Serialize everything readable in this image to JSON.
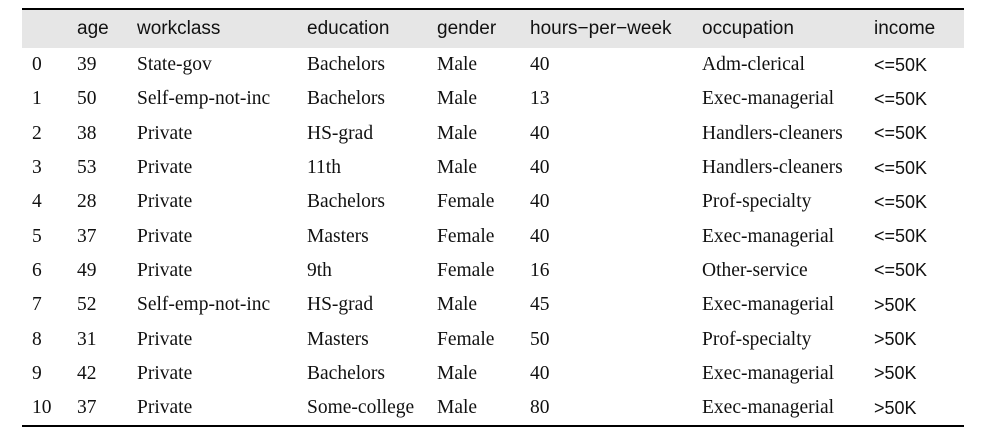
{
  "table": {
    "columns": [
      "",
      "age",
      "workclass",
      "education",
      "gender",
      "hours−per−week",
      "occupation",
      "income"
    ],
    "rows": [
      [
        "0",
        "39",
        "State-gov",
        "Bachelors",
        "Male",
        "40",
        "Adm-clerical",
        "<=50K"
      ],
      [
        "1",
        "50",
        "Self-emp-not-inc",
        "Bachelors",
        "Male",
        "13",
        "Exec-managerial",
        "<=50K"
      ],
      [
        "2",
        "38",
        "Private",
        "HS-grad",
        "Male",
        "40",
        "Handlers-cleaners",
        "<=50K"
      ],
      [
        "3",
        "53",
        "Private",
        "11th",
        "Male",
        "40",
        "Handlers-cleaners",
        "<=50K"
      ],
      [
        "4",
        "28",
        "Private",
        "Bachelors",
        "Female",
        "40",
        "Prof-specialty",
        "<=50K"
      ],
      [
        "5",
        "37",
        "Private",
        "Masters",
        "Female",
        "40",
        "Exec-managerial",
        "<=50K"
      ],
      [
        "6",
        "49",
        "Private",
        "9th",
        "Female",
        "16",
        "Other-service",
        "<=50K"
      ],
      [
        "7",
        "52",
        "Self-emp-not-inc",
        "HS-grad",
        "Male",
        "45",
        "Exec-managerial",
        ">50K"
      ],
      [
        "8",
        "31",
        "Private",
        "Masters",
        "Female",
        "50",
        "Prof-specialty",
        ">50K"
      ],
      [
        "9",
        "42",
        "Private",
        "Bachelors",
        "Male",
        "40",
        "Exec-managerial",
        ">50K"
      ],
      [
        "10",
        "37",
        "Private",
        "Some-college",
        "Male",
        "80",
        "Exec-managerial",
        ">50K"
      ]
    ],
    "header_background": "#e6e6e6"
  }
}
